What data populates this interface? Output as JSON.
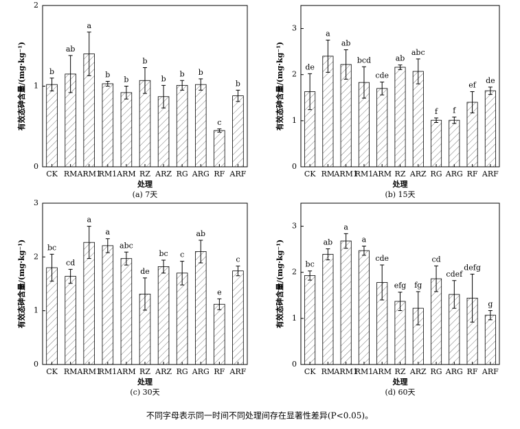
{
  "chart_data": [
    {
      "type": "bar",
      "ylabel": "有效态砷含量/(mg·kg⁻¹)",
      "xlabel": "处理",
      "caption": "(a) 7天",
      "categories": [
        "CK",
        "RM",
        "ARM1",
        "RM1",
        "ARM",
        "RZ",
        "ARZ",
        "RG",
        "ARG",
        "RF",
        "ARF"
      ],
      "values": [
        1.02,
        1.15,
        1.4,
        1.03,
        0.92,
        1.07,
        0.87,
        1.01,
        1.02,
        0.45,
        0.88
      ],
      "errors": [
        0.08,
        0.23,
        0.27,
        0.03,
        0.08,
        0.16,
        0.14,
        0.06,
        0.07,
        0.02,
        0.07
      ],
      "labels": [
        "b",
        "ab",
        "a",
        "b",
        "b",
        "b",
        "b",
        "b",
        "b",
        "c",
        "b"
      ],
      "ylim": [
        0,
        2
      ],
      "yticks": [
        0,
        1,
        2
      ]
    },
    {
      "type": "bar",
      "ylabel": "有效态砷含量/(mg·kg⁻¹)",
      "xlabel": "处理",
      "caption": "(b) 15天",
      "categories": [
        "CK",
        "RM",
        "ARM1",
        "RM1",
        "ARM",
        "RZ",
        "ARZ",
        "RG",
        "ARG",
        "RF",
        "ARF"
      ],
      "values": [
        1.63,
        2.4,
        2.22,
        1.83,
        1.7,
        2.16,
        2.07,
        1.01,
        1.01,
        1.4,
        1.65
      ],
      "errors": [
        0.39,
        0.35,
        0.32,
        0.34,
        0.14,
        0.05,
        0.27,
        0.05,
        0.07,
        0.23,
        0.08
      ],
      "labels": [
        "de",
        "a",
        "ab",
        "bcd",
        "cde",
        "ab",
        "abc",
        "f",
        "f",
        "ef",
        "de"
      ],
      "ylim": [
        0,
        3.5
      ],
      "yticks": [
        0,
        1,
        2,
        3
      ]
    },
    {
      "type": "bar",
      "ylabel": "有效态砷含量/(mg·kg⁻¹)",
      "xlabel": "处理",
      "caption": "(c) 30天",
      "categories": [
        "CK",
        "RM",
        "ARM1",
        "RM1",
        "ARM",
        "RZ",
        "ARZ",
        "RG",
        "ARG",
        "RF",
        "ARF"
      ],
      "values": [
        1.8,
        1.64,
        2.27,
        2.21,
        1.97,
        1.31,
        1.82,
        1.7,
        2.1,
        1.12,
        1.74
      ],
      "errors": [
        0.25,
        0.13,
        0.3,
        0.13,
        0.12,
        0.3,
        0.12,
        0.22,
        0.21,
        0.1,
        0.09
      ],
      "labels": [
        "bc",
        "cd",
        "a",
        "a",
        "abc",
        "de",
        "bc",
        "c",
        "ab",
        "e",
        "c"
      ],
      "ylim": [
        0,
        3
      ],
      "yticks": [
        0,
        1,
        2,
        3
      ]
    },
    {
      "type": "bar",
      "ylabel": "有效态砷含量/(mg·kg⁻¹)",
      "xlabel": "处理",
      "caption": "(d) 60天",
      "categories": [
        "CK",
        "RM",
        "ARM1",
        "RM1",
        "ARM",
        "RZ",
        "ARZ",
        "RG",
        "ARG",
        "RF",
        "ARF"
      ],
      "values": [
        1.93,
        2.39,
        2.68,
        2.47,
        1.78,
        1.37,
        1.22,
        1.86,
        1.52,
        1.44,
        1.07
      ],
      "errors": [
        0.1,
        0.12,
        0.16,
        0.1,
        0.38,
        0.2,
        0.36,
        0.28,
        0.3,
        0.52,
        0.1
      ],
      "labels": [
        "bc",
        "ab",
        "a",
        "a",
        "cde",
        "efg",
        "fg",
        "cd",
        "cdef",
        "defg",
        "g"
      ],
      "ylim": [
        0,
        3.5
      ],
      "yticks": [
        0,
        1,
        2,
        3
      ]
    }
  ],
  "footnote": "不同字母表示同一时间不同处理间存在显著性差异(P<0.05)。"
}
